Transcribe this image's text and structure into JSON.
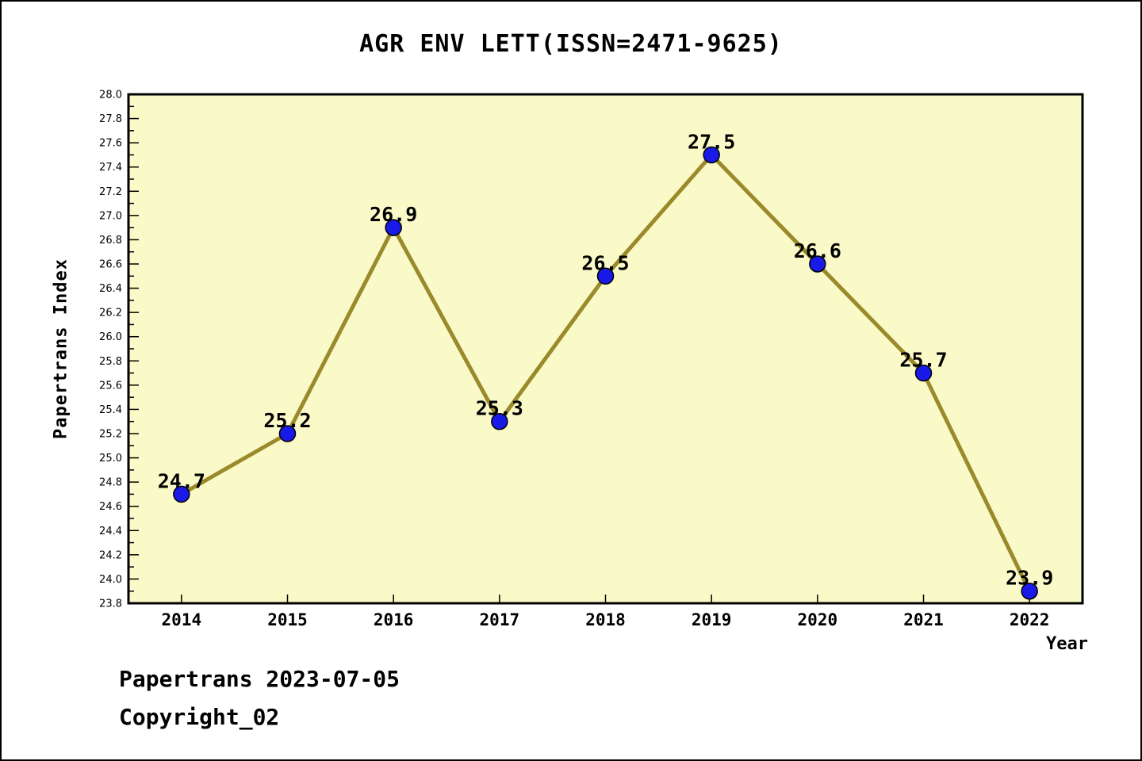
{
  "page": {
    "footer_line1": "Papertrans 2023-07-05",
    "footer_line2": "Copyright_02"
  },
  "chart_data": {
    "type": "line",
    "title": "AGR ENV LETT(ISSN=2471-9625)",
    "xlabel": "Year",
    "ylabel": "Papertrans Index",
    "categories": [
      "2014",
      "2015",
      "2016",
      "2017",
      "2018",
      "2019",
      "2020",
      "2021",
      "2022"
    ],
    "series": [
      {
        "name": "Papertrans Index",
        "values": [
          24.7,
          25.2,
          26.9,
          25.3,
          26.5,
          27.5,
          26.6,
          25.7,
          23.9
        ],
        "point_labels": [
          "24.7",
          "25.2",
          "26.9",
          "25.3",
          "26.5",
          "27.5",
          "26.6",
          "25.7",
          "23.9"
        ]
      }
    ],
    "ylim": [
      23.8,
      28.0
    ],
    "ytick_major_step": 0.2,
    "ytick_minor_step": 0.1,
    "grid": false,
    "legend_position": "none",
    "colors": {
      "plot_background": "#FAFAC8",
      "frame": "#000000",
      "line": "#9A8A2B",
      "marker_fill": "#1A1AE8",
      "marker_edge": "#000000",
      "text": "#000000"
    }
  }
}
